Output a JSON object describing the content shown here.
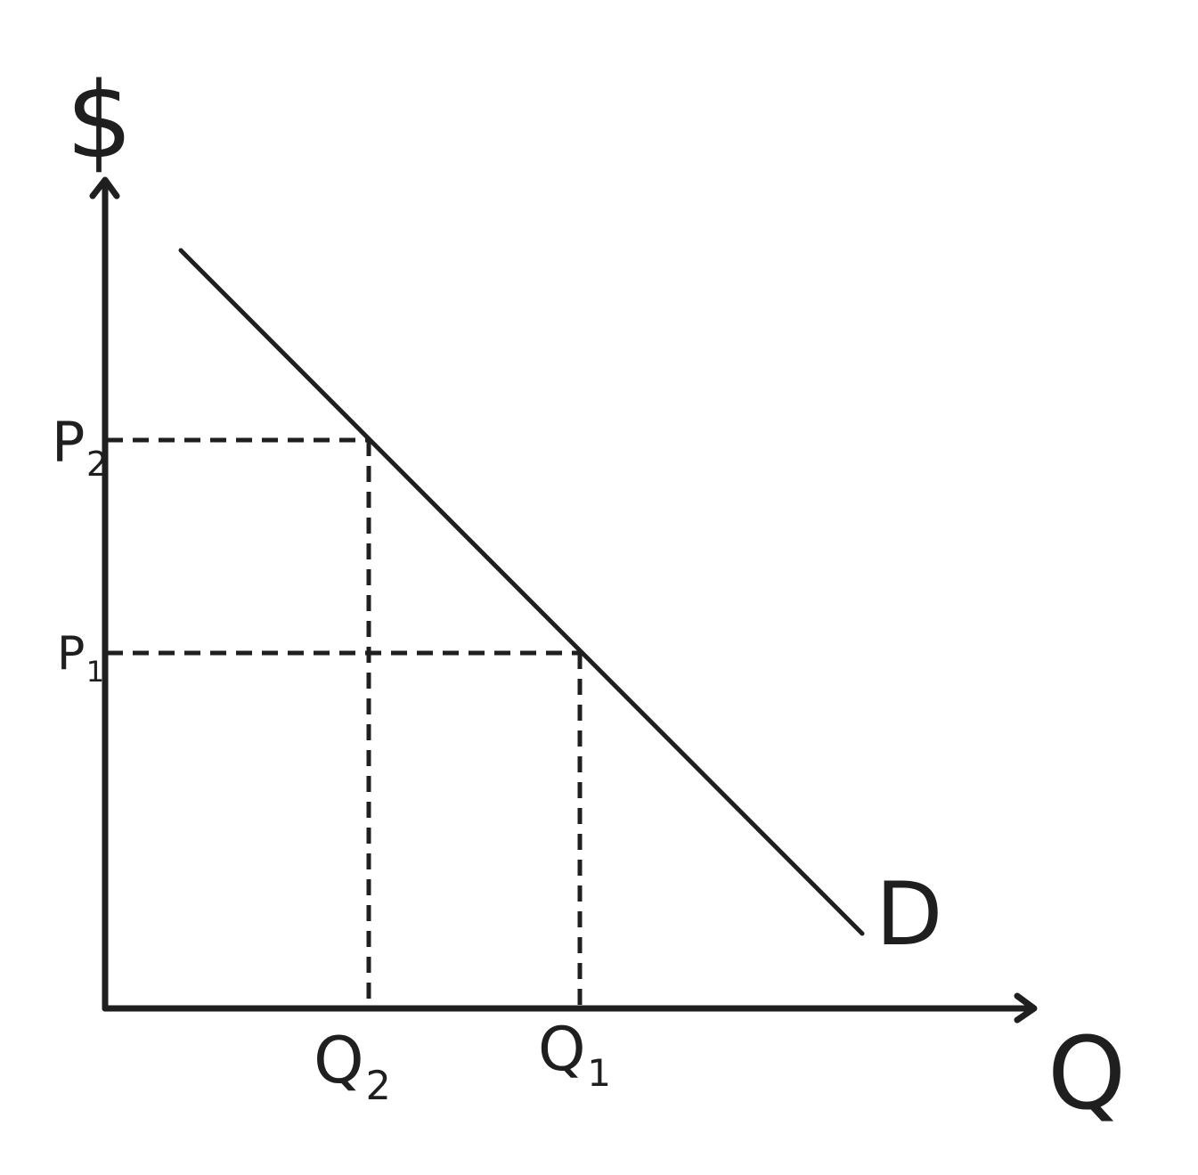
{
  "labels": {
    "y_axis": "$",
    "x_axis": "Q",
    "curve": "D",
    "p2": {
      "main": "P",
      "sub": "2"
    },
    "p1": {
      "main": "P",
      "sub": "1"
    },
    "q2": {
      "main": "Q",
      "sub": "2"
    },
    "q1": {
      "main": "Q",
      "sub": "1"
    }
  },
  "colors": {
    "ink": "#1f1f1f",
    "background": "#ffffff"
  }
}
